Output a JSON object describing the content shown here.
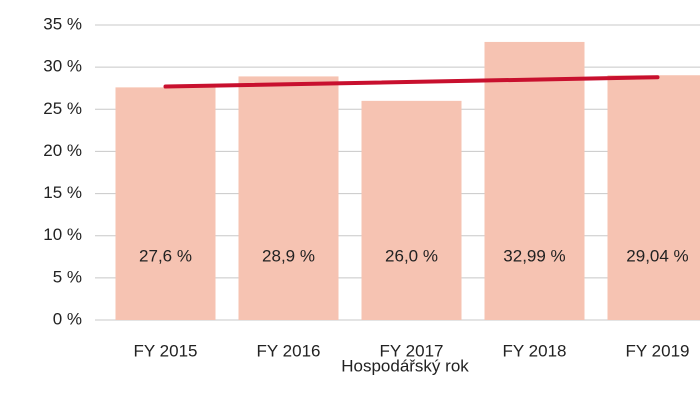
{
  "chart_data": {
    "type": "bar",
    "x_label": "Hospodářský rok",
    "categories": [
      "FY 2015",
      "FY 2016",
      "FY 2017",
      "FY 2018",
      "FY 2019"
    ],
    "values": [
      27.6,
      28.9,
      26.0,
      32.99,
      29.04
    ],
    "value_labels": [
      "27,6 %",
      "28,9 %",
      "26,0 %",
      "32,99 %",
      "29,04 %"
    ],
    "color": "#f6c3b2",
    "trend": {
      "color": "#c8102e",
      "values": [
        27.7,
        28.8
      ]
    },
    "ylim": [
      0,
      35
    ],
    "yticks": [
      {
        "value": 0,
        "label": "0 %"
      },
      {
        "value": 5,
        "label": "5 %"
      },
      {
        "value": 10,
        "label": "10 %"
      },
      {
        "value": 15,
        "label": "15 %"
      },
      {
        "value": 20,
        "label": "20 %"
      },
      {
        "value": 25,
        "label": "25 %"
      },
      {
        "value": 30,
        "label": "30 %"
      },
      {
        "value": 35,
        "label": "35 %"
      }
    ],
    "grid": true
  }
}
